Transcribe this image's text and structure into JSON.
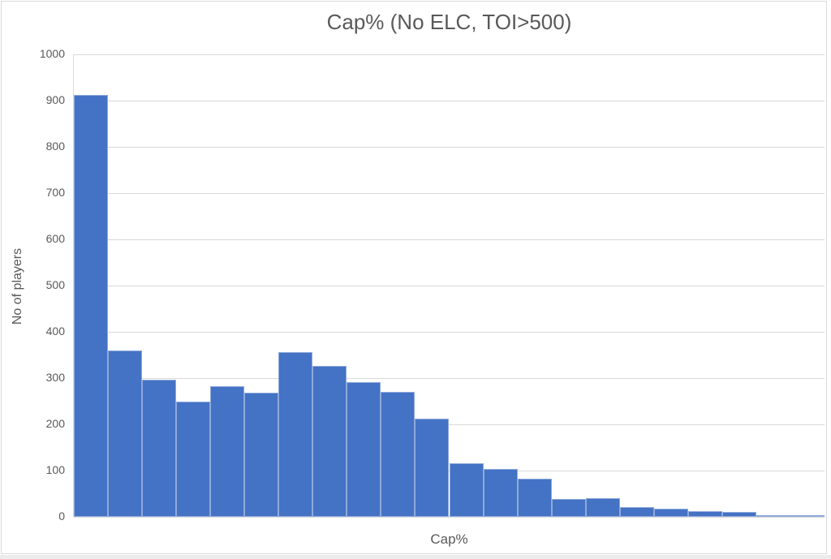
{
  "chart_data": {
    "type": "bar",
    "subtype": "histogram",
    "title": "Cap% (No ELC, TOI>500)",
    "xlabel": "Cap%",
    "ylabel": "No of players",
    "ylim": [
      0,
      1000
    ],
    "ytick_step": 100,
    "yticks": [
      0,
      100,
      200,
      300,
      400,
      500,
      600,
      700,
      800,
      900,
      1000
    ],
    "xticks": [],
    "bin_count": 22,
    "values": [
      913,
      360,
      297,
      250,
      283,
      268,
      356,
      327,
      291,
      270,
      212,
      115,
      103,
      82,
      38,
      41,
      21,
      18,
      12,
      10,
      3,
      1
    ],
    "grid": "horizontal",
    "legend": "none",
    "colors": {
      "bar_fill": "#4472C4",
      "bar_border": "#8FAADC",
      "gridline": "#D9D9D9",
      "axis_text": "#595959",
      "frame_border": "#D9D9D9"
    }
  }
}
